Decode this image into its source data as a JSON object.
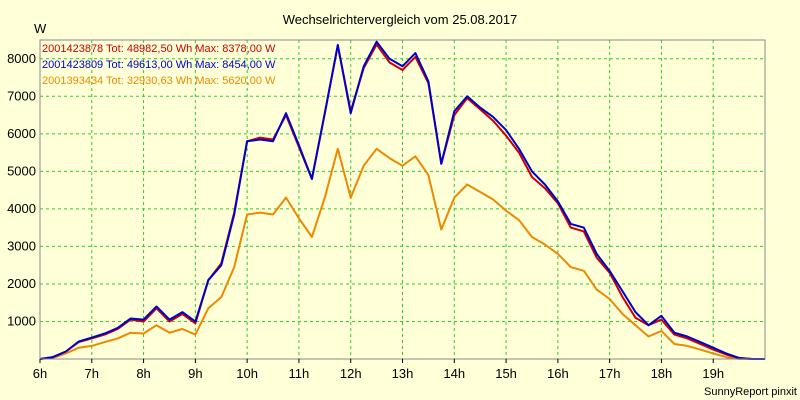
{
  "chart_data": {
    "type": "line",
    "title": "Wechselrichtervergleich vom 25.08.2017",
    "ylabel": "W",
    "credit": "SunnyReport pinxit",
    "xlim": [
      6,
      20
    ],
    "ylim": [
      0,
      8500
    ],
    "x_ticks": [
      "6h",
      "7h",
      "8h",
      "9h",
      "10h",
      "11h",
      "12h",
      "13h",
      "14h",
      "15h",
      "16h",
      "17h",
      "18h",
      "19h"
    ],
    "y_ticks": [
      "1000",
      "2000",
      "3000",
      "4000",
      "5000",
      "6000",
      "7000",
      "8000"
    ],
    "grid": true,
    "legend_position": "top-left",
    "x": [
      6.0,
      6.25,
      6.5,
      6.75,
      7.0,
      7.25,
      7.5,
      7.75,
      8.0,
      8.25,
      8.5,
      8.75,
      9.0,
      9.25,
      9.5,
      9.75,
      10.0,
      10.25,
      10.5,
      10.75,
      11.0,
      11.25,
      11.5,
      11.75,
      12.0,
      12.25,
      12.5,
      12.75,
      13.0,
      13.25,
      13.5,
      13.75,
      14.0,
      14.25,
      14.5,
      14.75,
      15.0,
      15.25,
      15.5,
      15.75,
      16.0,
      16.25,
      16.5,
      16.75,
      17.0,
      17.25,
      17.5,
      17.75,
      18.0,
      18.25,
      18.5,
      18.75,
      19.0,
      19.25,
      19.5,
      19.75,
      20.0
    ],
    "series": [
      {
        "name": "2001423878",
        "legend": "2001423878 Tot: 48982,50 Wh Max: 8378,00 W",
        "color": "#cc0000",
        "values": [
          0,
          50,
          200,
          450,
          550,
          650,
          800,
          1050,
          1000,
          1350,
          1000,
          1200,
          950,
          2100,
          2550,
          3900,
          5800,
          5900,
          5850,
          6500,
          5650,
          4800,
          6550,
          8350,
          6600,
          7750,
          8380,
          7900,
          7700,
          8050,
          7350,
          5200,
          6500,
          6950,
          6650,
          6350,
          5950,
          5500,
          4850,
          4550,
          4150,
          3500,
          3400,
          2700,
          2300,
          1650,
          1100,
          900,
          1050,
          650,
          550,
          400,
          250,
          120,
          20,
          0,
          0
        ]
      },
      {
        "name": "2001423809",
        "legend": "2001423809 Tot: 49613,00 Wh Max: 8454,00 W",
        "color": "#0000cc",
        "values": [
          0,
          50,
          200,
          470,
          570,
          680,
          830,
          1080,
          1050,
          1400,
          1050,
          1250,
          1000,
          2100,
          2500,
          3850,
          5800,
          5850,
          5800,
          6550,
          5700,
          4800,
          6550,
          8370,
          6550,
          7800,
          8454,
          8000,
          7800,
          8150,
          7400,
          5200,
          6600,
          7000,
          6700,
          6450,
          6100,
          5600,
          5000,
          4650,
          4200,
          3600,
          3500,
          2800,
          2350,
          1800,
          1250,
          900,
          1150,
          700,
          600,
          450,
          300,
          150,
          30,
          0,
          0
        ]
      },
      {
        "name": "2001393434",
        "legend": "2001393434 Tot: 32930,63 Wh Max: 5620,00 W",
        "color": "#ee8800",
        "values": [
          0,
          30,
          150,
          300,
          350,
          450,
          550,
          700,
          680,
          900,
          700,
          800,
          650,
          1350,
          1650,
          2450,
          3850,
          3900,
          3850,
          4300,
          3750,
          3250,
          4300,
          5600,
          4300,
          5150,
          5600,
          5350,
          5150,
          5400,
          4900,
          3450,
          4300,
          4650,
          4450,
          4250,
          3950,
          3700,
          3250,
          3050,
          2800,
          2450,
          2350,
          1850,
          1600,
          1200,
          900,
          600,
          750,
          400,
          350,
          250,
          150,
          50,
          0,
          0,
          0
        ]
      }
    ]
  }
}
